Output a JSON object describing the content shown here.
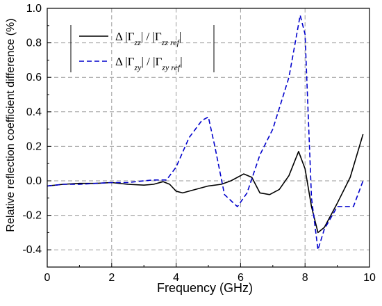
{
  "chart_data": {
    "type": "line",
    "xlabel": "Frequency (GHz)",
    "ylabel": "Relative reflection coefficient difference (%)",
    "xlim": [
      0,
      10
    ],
    "ylim": [
      -0.5,
      1.0
    ],
    "x_ticks": [
      "0",
      "2",
      "4",
      "6",
      "8",
      "10"
    ],
    "y_ticks": [
      "-0.4",
      "-0.2",
      "0.0",
      "0.2",
      "0.4",
      "0.6",
      "0.8",
      "1.0"
    ],
    "grid": true,
    "legend_position": "top-left",
    "series": [
      {
        "name": "Δ |Γzz| / |Γzz ref|",
        "legend": {
          "prefix": "Δ |Γ",
          "sub1": "zz",
          "mid": "| / |Γ",
          "sub2": "zz ref",
          "suffix": "|"
        },
        "color": "#000000",
        "style": "solid",
        "x": [
          0.0,
          0.5,
          1.0,
          1.5,
          2.0,
          2.5,
          3.0,
          3.3,
          3.6,
          3.8,
          4.0,
          4.2,
          4.6,
          5.0,
          5.4,
          5.7,
          6.1,
          6.35,
          6.6,
          6.9,
          7.2,
          7.5,
          7.8,
          8.0,
          8.2,
          8.4,
          8.6,
          9.0,
          9.4,
          9.8
        ],
        "y": [
          -0.03,
          -0.02,
          -0.015,
          -0.015,
          -0.01,
          -0.02,
          -0.025,
          -0.02,
          -0.005,
          -0.02,
          -0.06,
          -0.07,
          -0.05,
          -0.03,
          -0.02,
          0.0,
          0.04,
          0.02,
          -0.07,
          -0.08,
          -0.05,
          0.03,
          0.17,
          0.07,
          -0.15,
          -0.3,
          -0.27,
          -0.13,
          0.02,
          0.27
        ]
      },
      {
        "name": "Δ |Γzy| / |Γzy ref|",
        "legend": {
          "prefix": "Δ |Γ",
          "sub1": "zy",
          "mid": "| / |Γ",
          "sub2": "zy ref",
          "suffix": "|"
        },
        "color": "#0000cc",
        "style": "dashed",
        "x": [
          0.0,
          0.5,
          1.0,
          1.5,
          2.0,
          2.5,
          3.0,
          3.3,
          3.7,
          4.0,
          4.4,
          4.8,
          5.0,
          5.2,
          5.5,
          5.9,
          6.2,
          6.6,
          7.0,
          7.5,
          7.85,
          8.0,
          8.2,
          8.4,
          8.6,
          9.0,
          9.5,
          9.8
        ],
        "y": [
          -0.03,
          -0.02,
          -0.02,
          -0.015,
          -0.01,
          -0.01,
          0.0,
          0.005,
          0.005,
          0.08,
          0.25,
          0.35,
          0.37,
          0.2,
          -0.08,
          -0.15,
          -0.07,
          0.15,
          0.3,
          0.6,
          0.96,
          0.85,
          -0.1,
          -0.4,
          -0.28,
          -0.15,
          -0.15,
          0.0
        ]
      }
    ]
  }
}
